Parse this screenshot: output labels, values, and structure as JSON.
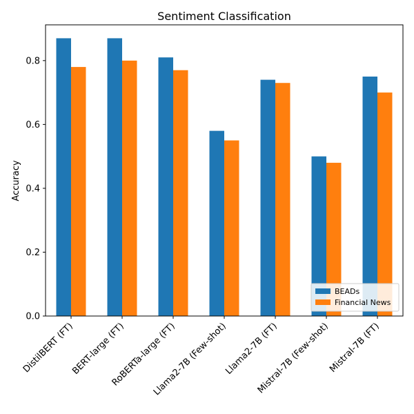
{
  "chart_data": {
    "type": "bar",
    "title": "Sentiment Classification",
    "xlabel": "",
    "ylabel": "Accuracy",
    "categories": [
      "DistilBERT (FT)",
      "BERT-large (FT)",
      "RoBERTa-large (FT)",
      "Llama2-7B (Few-shot)",
      "Llama2-7B (FT)",
      "Mistral-7B (Few-shot)",
      "Mistral-7B (FT)"
    ],
    "series": [
      {
        "name": "BEADs",
        "color": "#1f77b4",
        "values": [
          0.87,
          0.87,
          0.81,
          0.58,
          0.74,
          0.5,
          0.75
        ]
      },
      {
        "name": "Financial News",
        "color": "#ff7f0e",
        "values": [
          0.78,
          0.8,
          0.77,
          0.55,
          0.73,
          0.48,
          0.7
        ]
      }
    ],
    "ylim": [
      0,
      0.912
    ],
    "yticks": [
      0.0,
      0.2,
      0.4,
      0.6,
      0.8
    ],
    "ytick_labels": [
      "0.0",
      "0.2",
      "0.4",
      "0.6",
      "0.8"
    ],
    "grid": false,
    "legend_position": "lower-right"
  }
}
